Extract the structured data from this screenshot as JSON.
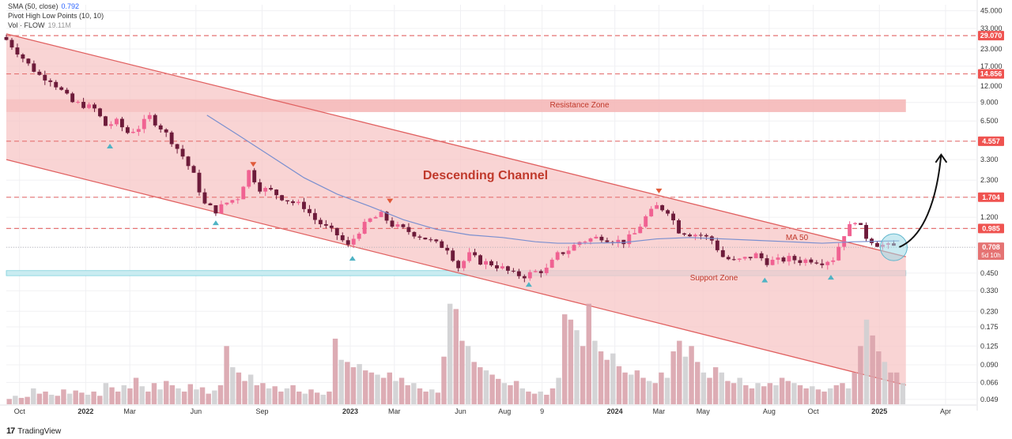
{
  "legend": {
    "sma_label": "SMA (50, close)",
    "sma_value": "0.792",
    "pivot_label": "Pivot High Low Points (10, 10)",
    "vol_label": "Vol · FLOW",
    "vol_value": "19.11M"
  },
  "branding": {
    "logo_text": "TradingView"
  },
  "annotations": {
    "channel": "Descending Channel",
    "resistance": "Resistance Zone",
    "support": "Support Zone",
    "ma": "MA 50"
  },
  "price_tags": [
    {
      "value": 29.07,
      "label": "29.070",
      "color": "#ef5350"
    },
    {
      "value": 14.856,
      "label": "14.856",
      "color": "#ef5350"
    },
    {
      "value": 4.557,
      "label": "4.557",
      "color": "#ef5350"
    },
    {
      "value": 1.704,
      "label": "1.704",
      "color": "#ef5350"
    },
    {
      "value": 0.985,
      "label": "0.985",
      "color": "#ef5350"
    }
  ],
  "current_price": {
    "value": 0.708,
    "label": "0.708",
    "sublabel": "5d 10h",
    "color": "#e57373"
  },
  "colors": {
    "bull": "#f06292",
    "bear": "#6d1b3a",
    "channel_fill": "#f7c6c6",
    "channel_line": "#e06060",
    "resistance_fill": "#f4b4b4",
    "support_fill": "#c9ecf1",
    "sma_line": "#7a8fcf",
    "dashed": "#e57373",
    "vol_up": "#d9a3ac",
    "vol_down": "#cfcfd2"
  },
  "chart_data": {
    "type": "candlestick",
    "scale": "log",
    "y_ticks": [
      "45.000",
      "33.000",
      "23.000",
      "17.000",
      "12.000",
      "9.000",
      "6.500",
      "4.557",
      "3.300",
      "2.300",
      "1.704",
      "1.200",
      "0.985",
      "0.708",
      "0.450",
      "0.330",
      "0.230",
      "0.175",
      "0.125",
      "0.090",
      "0.066",
      "0.049"
    ],
    "y_tick_values": [
      45,
      33,
      23,
      17,
      12,
      9,
      6.5,
      4.557,
      3.3,
      2.3,
      1.704,
      1.2,
      0.985,
      0.708,
      0.45,
      0.33,
      0.23,
      0.175,
      0.125,
      0.09,
      0.066,
      0.049
    ],
    "x_labels": [
      {
        "label": "Oct",
        "t": 0.6
      },
      {
        "label": "2022",
        "t": 3.6
      },
      {
        "label": "Mar",
        "t": 5.6
      },
      {
        "label": "Jun",
        "t": 8.6
      },
      {
        "label": "Sep",
        "t": 11.6
      },
      {
        "label": "2023",
        "t": 15.6
      },
      {
        "label": "Mar",
        "t": 17.6
      },
      {
        "label": "Jun",
        "t": 20.6
      },
      {
        "label": "Aug",
        "t": 22.6
      },
      {
        "label": "9",
        "t": 24.3
      },
      {
        "label": "2024",
        "t": 27.6
      },
      {
        "label": "Mar",
        "t": 29.6
      },
      {
        "label": "May",
        "t": 31.6
      },
      {
        "label": "Aug",
        "t": 34.6
      },
      {
        "label": "Oct",
        "t": 36.6
      },
      {
        "label": "2025",
        "t": 39.6
      },
      {
        "label": "Apr",
        "t": 42.6
      }
    ],
    "weekly_close_points": [
      [
        0,
        27
      ],
      [
        0.5,
        22
      ],
      [
        1,
        17.5
      ],
      [
        1.5,
        14.5
      ],
      [
        2,
        13.5
      ],
      [
        2.5,
        11
      ],
      [
        3,
        9
      ],
      [
        3.5,
        8.6
      ],
      [
        4,
        8
      ],
      [
        4.5,
        6
      ],
      [
        5,
        6.4
      ],
      [
        5.5,
        5.3
      ],
      [
        6,
        5.8
      ],
      [
        6.5,
        7
      ],
      [
        7,
        5.8
      ],
      [
        7.5,
        4.6
      ],
      [
        8,
        3.5
      ],
      [
        8.5,
        2.5
      ],
      [
        9,
        1.5
      ],
      [
        9.5,
        1.35
      ],
      [
        10,
        1.55
      ],
      [
        10.5,
        1.7
      ],
      [
        11,
        2.7
      ],
      [
        11.5,
        2
      ],
      [
        12,
        1.9
      ],
      [
        12.5,
        1.7
      ],
      [
        13,
        1.55
      ],
      [
        13.5,
        1.45
      ],
      [
        14,
        1.15
      ],
      [
        14.5,
        1.0
      ],
      [
        15,
        0.88
      ],
      [
        15.5,
        0.72
      ],
      [
        16,
        0.95
      ],
      [
        16.5,
        1.15
      ],
      [
        17,
        1.25
      ],
      [
        17.5,
        1.05
      ],
      [
        18,
        0.97
      ],
      [
        18.5,
        0.9
      ],
      [
        19,
        0.83
      ],
      [
        19.5,
        0.75
      ],
      [
        20,
        0.7
      ],
      [
        20.5,
        0.5
      ],
      [
        21,
        0.62
      ],
      [
        21.5,
        0.55
      ],
      [
        22,
        0.53
      ],
      [
        22.5,
        0.49
      ],
      [
        23,
        0.44
      ],
      [
        23.5,
        0.43
      ],
      [
        24,
        0.46
      ],
      [
        24.5,
        0.48
      ],
      [
        25,
        0.62
      ],
      [
        25.5,
        0.68
      ],
      [
        26,
        0.78
      ],
      [
        26.5,
        0.82
      ],
      [
        27,
        0.85
      ],
      [
        27.5,
        0.8
      ],
      [
        28,
        0.78
      ],
      [
        28.5,
        0.9
      ],
      [
        29,
        1.2
      ],
      [
        29.5,
        1.45
      ],
      [
        30,
        1.35
      ],
      [
        30.5,
        0.95
      ],
      [
        31,
        0.9
      ],
      [
        31.5,
        0.88
      ],
      [
        32,
        0.8
      ],
      [
        32.5,
        0.6
      ],
      [
        33,
        0.55
      ],
      [
        33.5,
        0.58
      ],
      [
        34,
        0.62
      ],
      [
        34.5,
        0.55
      ],
      [
        35,
        0.56
      ],
      [
        35.5,
        0.58
      ],
      [
        36,
        0.56
      ],
      [
        36.5,
        0.57
      ],
      [
        37,
        0.55
      ],
      [
        37.5,
        0.58
      ],
      [
        38,
        0.9
      ],
      [
        38.5,
        1.15
      ],
      [
        39,
        0.85
      ],
      [
        39.5,
        0.75
      ],
      [
        40,
        0.72
      ],
      [
        40.5,
        0.708
      ]
    ],
    "sma_points": [
      [
        9.1,
        7.2
      ],
      [
        10.5,
        5.1
      ],
      [
        12,
        3.5
      ],
      [
        13.5,
        2.4
      ],
      [
        15,
        1.8
      ],
      [
        16.5,
        1.45
      ],
      [
        18,
        1.15
      ],
      [
        19.5,
        0.97
      ],
      [
        21,
        0.88
      ],
      [
        22.5,
        0.84
      ],
      [
        24,
        0.78
      ],
      [
        25,
        0.76
      ],
      [
        26.5,
        0.76
      ],
      [
        28,
        0.77
      ],
      [
        29.5,
        0.82
      ],
      [
        31,
        0.84
      ],
      [
        32.5,
        0.82
      ],
      [
        34,
        0.8
      ],
      [
        35.5,
        0.78
      ],
      [
        37,
        0.76
      ],
      [
        38.5,
        0.78
      ],
      [
        40,
        0.79
      ],
      [
        40.5,
        0.792
      ]
    ],
    "channel": {
      "upper": [
        [
          0,
          30
        ],
        [
          40.8,
          0.6
        ]
      ],
      "lower": [
        [
          0,
          3.3
        ],
        [
          40.8,
          0.063
        ]
      ]
    },
    "resistance_zone": [
      7.6,
      9.5
    ],
    "support_zone": [
      0.43,
      0.47
    ],
    "pivot_highs": [
      [
        11.2,
        2.95
      ],
      [
        17.4,
        1.55
      ],
      [
        29.6,
        1.85
      ]
    ],
    "pivot_lows": [
      [
        4.7,
        4.3
      ],
      [
        9.5,
        1.12
      ],
      [
        15.7,
        0.6
      ],
      [
        23.7,
        0.38
      ],
      [
        34.4,
        0.41
      ],
      [
        37.4,
        0.43
      ]
    ],
    "projection": [
      [
        40.5,
        0.71
      ],
      [
        41.6,
        0.85
      ],
      [
        42.2,
        1.6
      ],
      [
        42.4,
        3.6
      ]
    ],
    "volume_relative": [
      0.05,
      0.08,
      0.06,
      0.07,
      0.15,
      0.1,
      0.12,
      0.09,
      0.08,
      0.14,
      0.1,
      0.13,
      0.11,
      0.09,
      0.12,
      0.08,
      0.2,
      0.16,
      0.12,
      0.18,
      0.15,
      0.25,
      0.17,
      0.12,
      0.2,
      0.14,
      0.22,
      0.18,
      0.15,
      0.12,
      0.19,
      0.14,
      0.16,
      0.1,
      0.13,
      0.18,
      0.55,
      0.35,
      0.3,
      0.22,
      0.28,
      0.18,
      0.2,
      0.15,
      0.17,
      0.12,
      0.15,
      0.18,
      0.12,
      0.1,
      0.14,
      0.11,
      0.09,
      0.12,
      0.62,
      0.42,
      0.4,
      0.35,
      0.38,
      0.32,
      0.3,
      0.28,
      0.25,
      0.3,
      0.22,
      0.25,
      0.18,
      0.2,
      0.15,
      0.12,
      0.14,
      0.11,
      0.45,
      0.95,
      0.9,
      0.6,
      0.55,
      0.4,
      0.35,
      0.32,
      0.28,
      0.24,
      0.2,
      0.18,
      0.22,
      0.15,
      0.12,
      0.1,
      0.12,
      0.09,
      0.15,
      0.25,
      0.85,
      0.8,
      0.7,
      0.55,
      0.95,
      0.6,
      0.5,
      0.42,
      0.48,
      0.36,
      0.3,
      0.28,
      0.32,
      0.25,
      0.22,
      0.2,
      0.3,
      0.25,
      0.5,
      0.6,
      0.45,
      0.55,
      0.4,
      0.3,
      0.25,
      0.35,
      0.3,
      0.22,
      0.2,
      0.25,
      0.18,
      0.15,
      0.2,
      0.17,
      0.2,
      0.18,
      0.25,
      0.22,
      0.2,
      0.18,
      0.15,
      0.17,
      0.14,
      0.12,
      0.15,
      0.18,
      0.2,
      0.15,
      0.3,
      0.55,
      0.8,
      0.65,
      0.5,
      0.4,
      0.3,
      0.3,
      0.2
    ]
  }
}
